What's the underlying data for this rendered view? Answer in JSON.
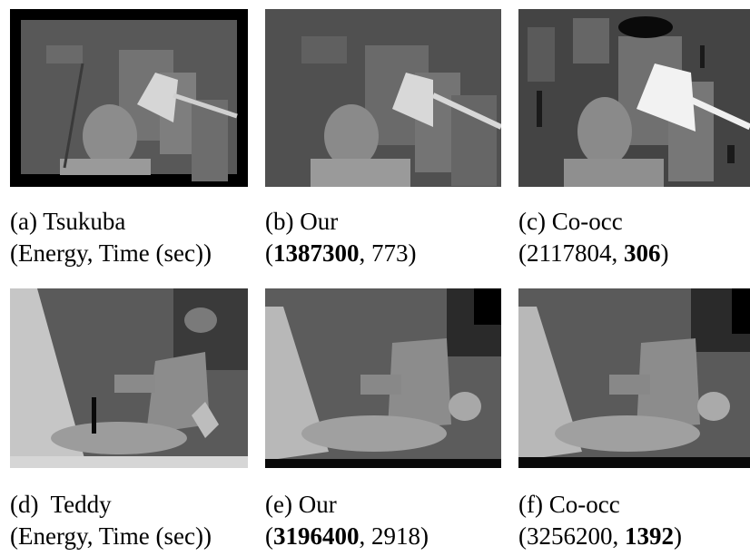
{
  "figure": {
    "panels": [
      {
        "id": "a",
        "title": "(a) Tsukuba",
        "line2": "(Energy, Time (sec))",
        "energy": "",
        "time": "",
        "bold": "none"
      },
      {
        "id": "b",
        "title": "(b) Our",
        "line2": "",
        "energy": "1387300",
        "time": "773",
        "bold": "energy"
      },
      {
        "id": "c",
        "title": "(c) Co-occ",
        "line2": "",
        "energy": "2117804",
        "time": "306",
        "bold": "time"
      },
      {
        "id": "d",
        "title": "(d)  Teddy",
        "line2": "(Energy, Time (sec))",
        "energy": "",
        "time": "",
        "bold": "none"
      },
      {
        "id": "e",
        "title": "(e) Our",
        "line2": "",
        "energy": "3196400",
        "time": "2918",
        "bold": "energy"
      },
      {
        "id": "f",
        "title": "(f) Co-occ",
        "line2": "",
        "energy": "3256200",
        "time": "1392",
        "bold": "time"
      }
    ]
  }
}
